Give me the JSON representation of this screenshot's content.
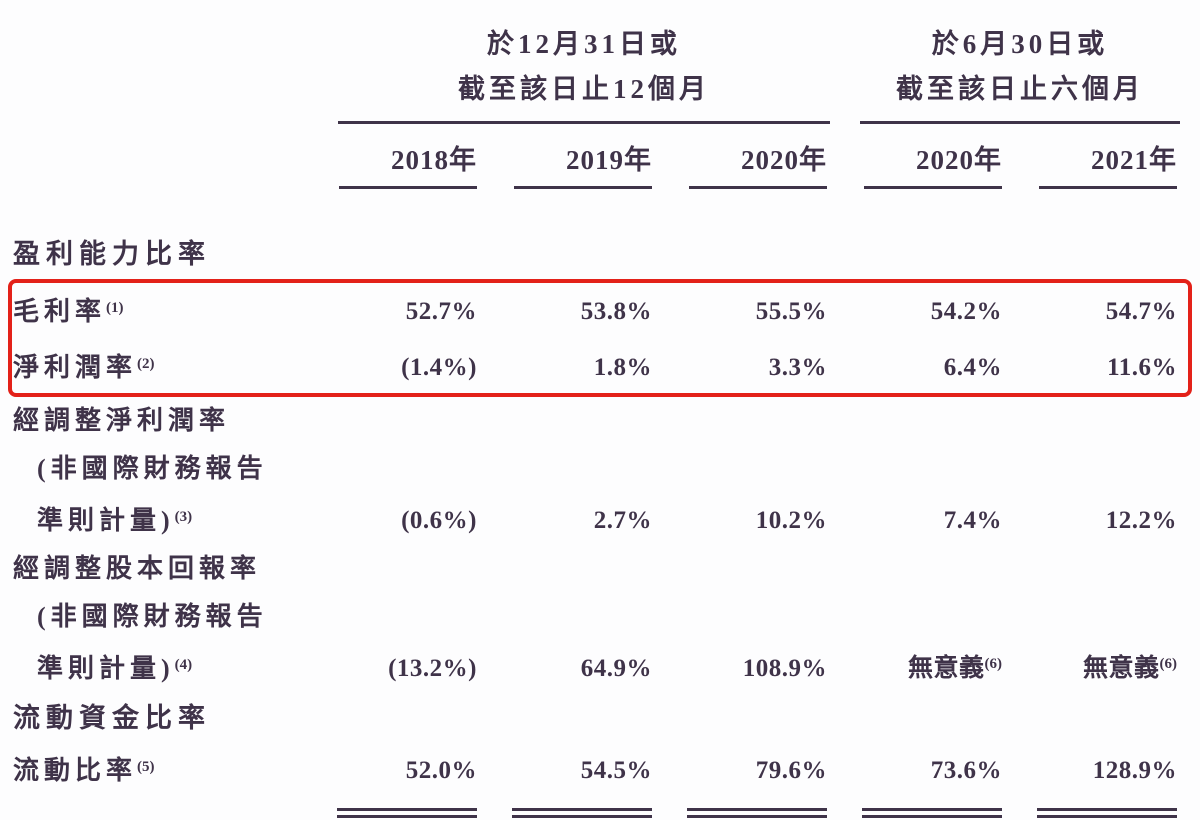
{
  "page": {
    "background": "#fdfdfe",
    "text_color": "#3f3349"
  },
  "highlight": {
    "border_color": "#e32119"
  },
  "table": {
    "col_groups": [
      {
        "line1": "於12月31日或",
        "line2": "截至該日止12個月"
      },
      {
        "line1": "於6月30日或",
        "line2": "截至該日止六個月"
      }
    ],
    "year_headers": [
      "2018年",
      "2019年",
      "2020年",
      "2020年",
      "2021年"
    ],
    "rows": [
      {
        "type": "section",
        "label": "盈利能力比率"
      },
      {
        "type": "data",
        "highlight": true,
        "label_lines": [
          "毛利率"
        ],
        "note": "(1)",
        "values": [
          "52.7%",
          "53.8%",
          "55.5%",
          "54.2%",
          "54.7%"
        ]
      },
      {
        "type": "data",
        "highlight": true,
        "label_lines": [
          "淨利潤率"
        ],
        "note": "(2)",
        "values": [
          "(1.4%)",
          "1.8%",
          "3.3%",
          "6.4%",
          "11.6%"
        ]
      },
      {
        "type": "data",
        "label_lines": [
          "經調整淨利潤率",
          "(非國際財務報告",
          "準則計量)"
        ],
        "note": "(3)",
        "values": [
          "(0.6%)",
          "2.7%",
          "10.2%",
          "7.4%",
          "12.2%"
        ]
      },
      {
        "type": "data",
        "label_lines": [
          "經調整股本回報率",
          "(非國際財務報告",
          "準則計量)"
        ],
        "note": "(4)",
        "values": [
          "(13.2%)",
          "64.9%",
          "108.9%",
          {
            "text": "無意義",
            "note": "(6)"
          },
          {
            "text": "無意義",
            "note": "(6)"
          }
        ]
      },
      {
        "type": "section",
        "label": "流動資金比率"
      },
      {
        "type": "data",
        "label_lines": [
          "流動比率"
        ],
        "note": "(5)",
        "double_rule": true,
        "values": [
          "52.0%",
          "54.5%",
          "79.6%",
          "73.6%",
          "128.9%"
        ]
      }
    ]
  }
}
